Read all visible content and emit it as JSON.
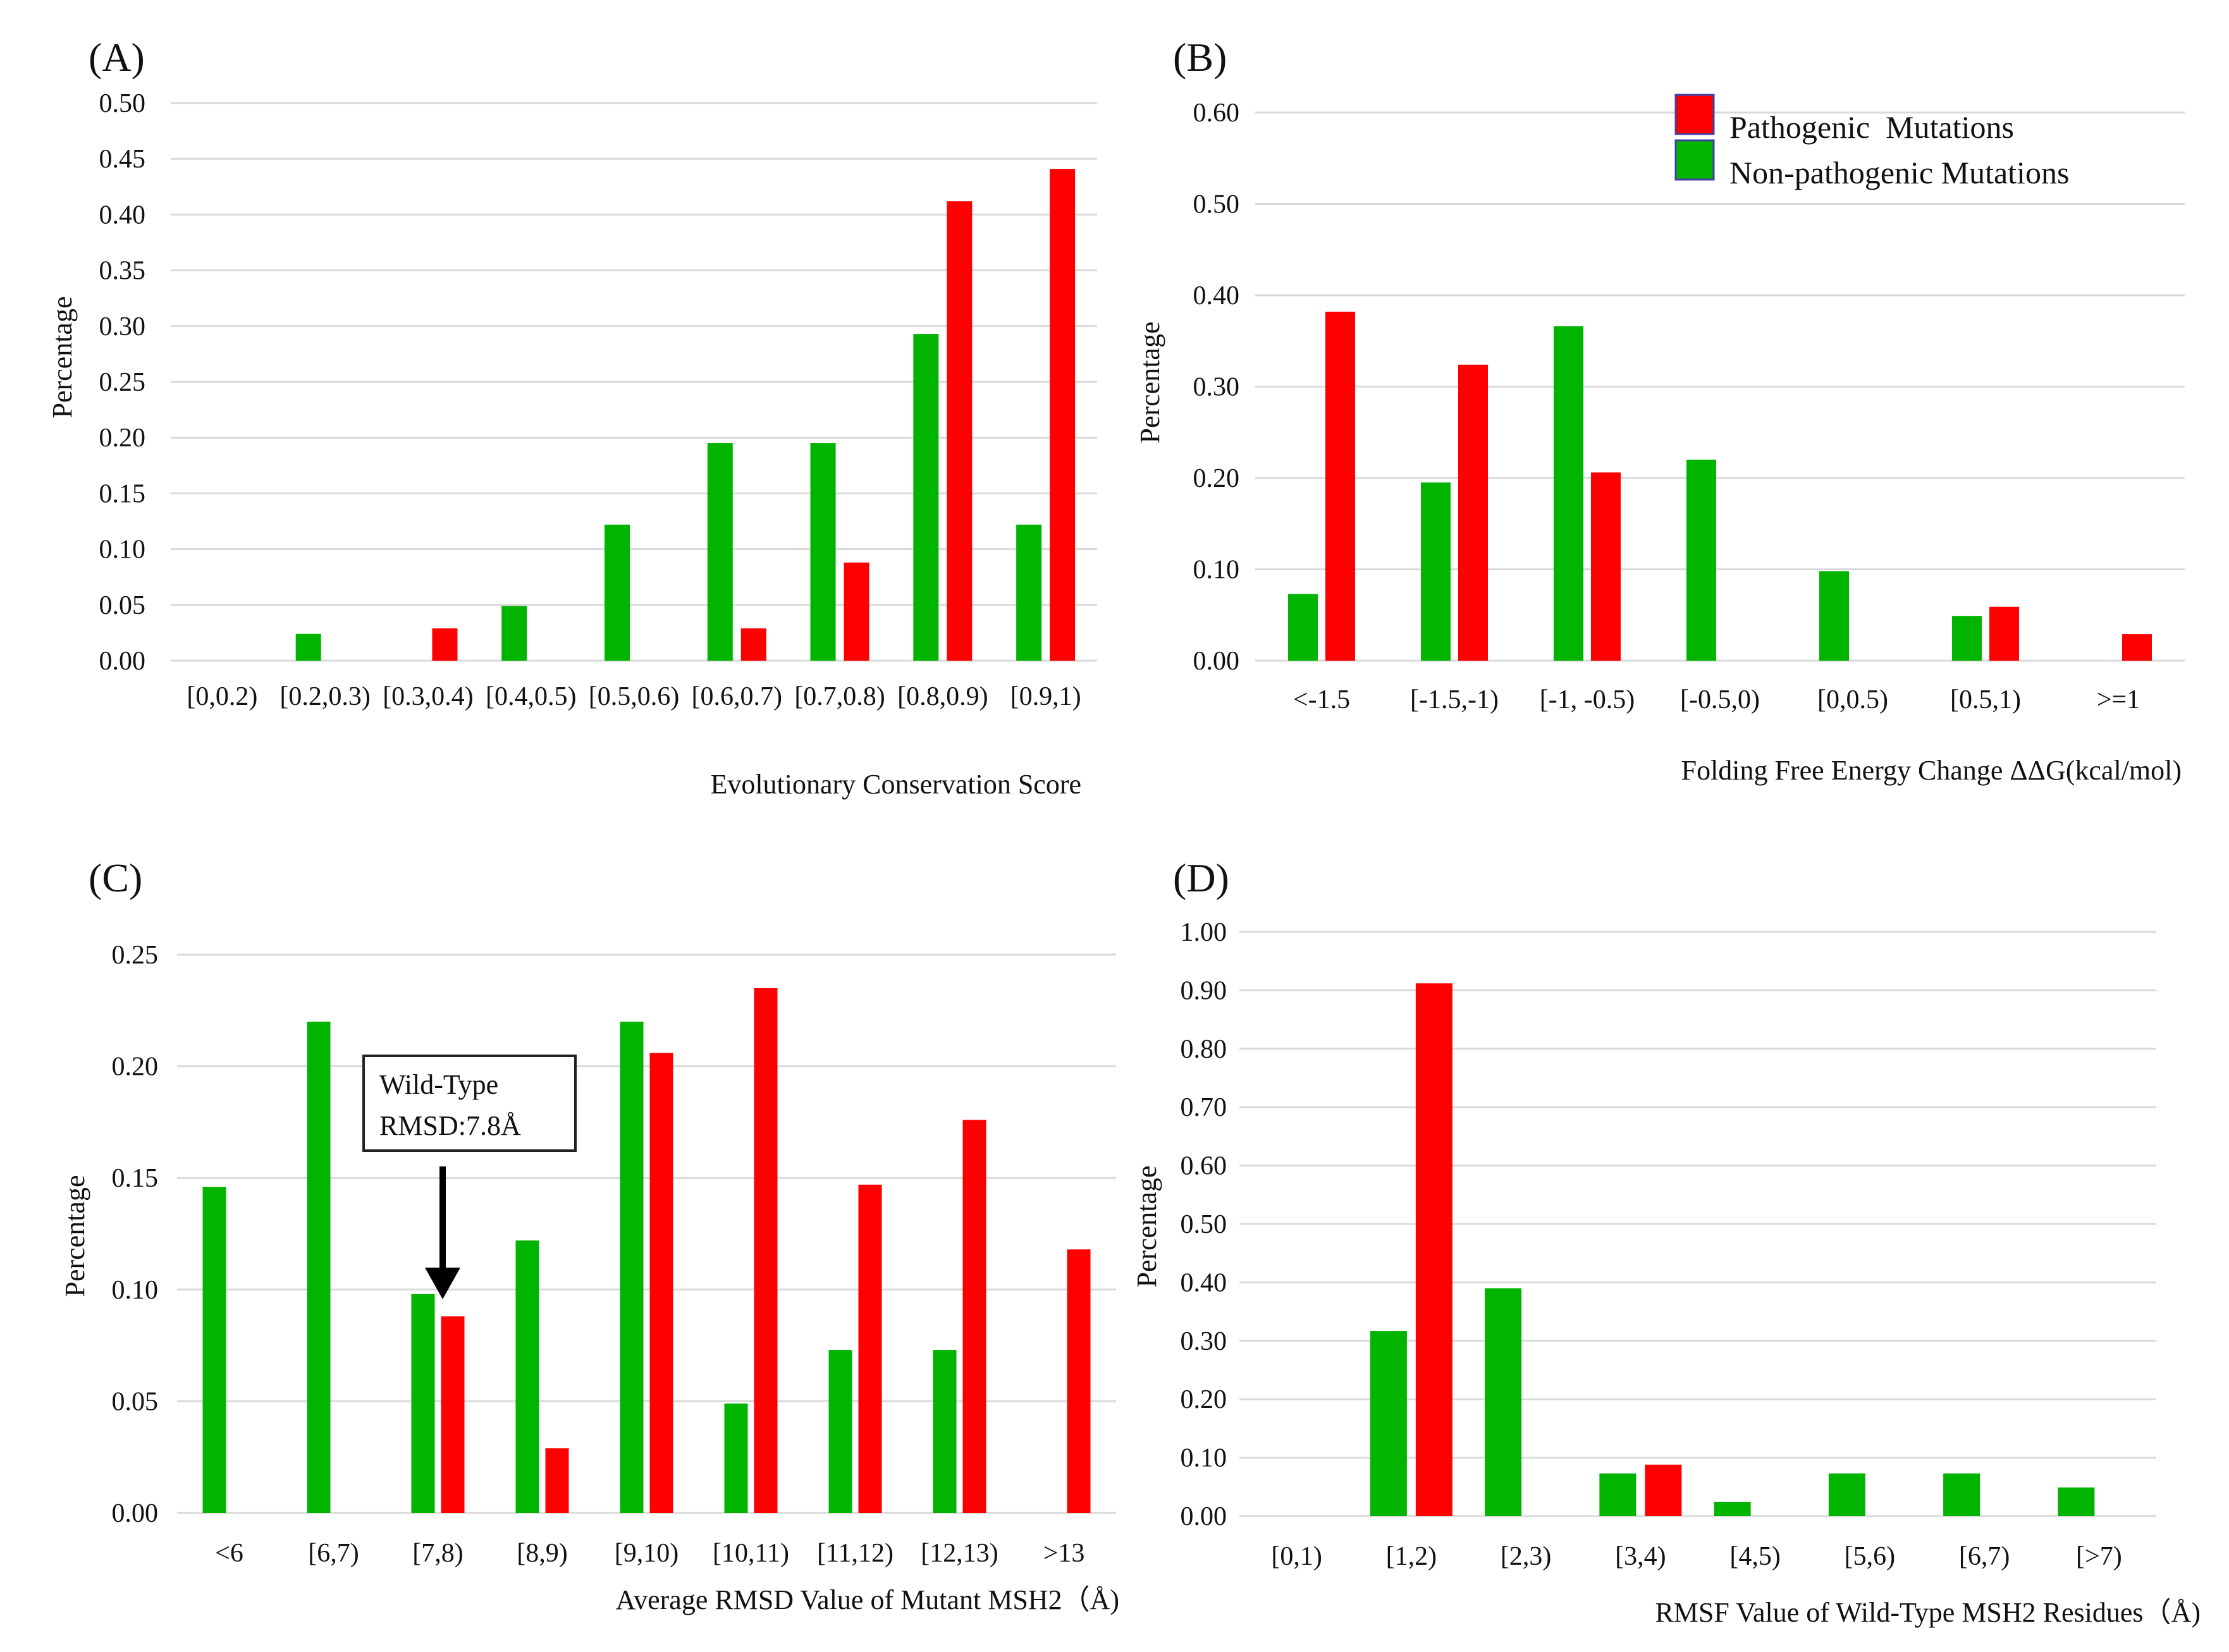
{
  "colors": {
    "pathogenic": "#ff0000",
    "non_pathogenic": "#00b400",
    "grid": "#d9d9d9",
    "text": "#111111"
  },
  "legend": {
    "pathogenic": "Pathogenic  Mutations",
    "non_pathogenic": "Non-pathogenic Mutations"
  },
  "chart_data": [
    {
      "panel": "(A)",
      "type": "bar",
      "ylabel": "Percentage",
      "xlabel": "Evolutionary Conservation Score",
      "ylim": [
        0,
        0.5
      ],
      "yticks": [
        "0.00",
        "0.05",
        "0.10",
        "0.15",
        "0.20",
        "0.25",
        "0.30",
        "0.35",
        "0.40",
        "0.45",
        "0.50"
      ],
      "grid": true,
      "categories": [
        "[0,0.2)",
        "[0.2,0.3)",
        "[0.3,0.4)",
        "[0.4,0.5)",
        "[0.5,0.6)",
        "[0.6,0.7)",
        "[0.7,0.8)",
        "[0.8,0.9)",
        "[0.9,1)"
      ],
      "series": [
        {
          "name": "Non-pathogenic Mutations",
          "values": [
            0,
            0.024,
            0,
            0.049,
            0.122,
            0.195,
            0.195,
            0.293,
            0.122
          ]
        },
        {
          "name": "Pathogenic Mutations",
          "values": [
            0,
            0,
            0.029,
            0,
            0,
            0.029,
            0.088,
            0.412,
            0.441
          ]
        }
      ]
    },
    {
      "panel": "(B)",
      "type": "bar",
      "ylabel": "Percentage",
      "xlabel": "Folding Free Energy Change ΔΔG(kcal/mol)",
      "ylim": [
        0,
        0.6
      ],
      "yticks": [
        "0.00",
        "0.10",
        "0.20",
        "0.30",
        "0.40",
        "0.50",
        "0.60"
      ],
      "grid": true,
      "legend_position": "top-right",
      "categories": [
        "<-1.5",
        "[-1.5,-1)",
        "[-1, -0.5)",
        "[-0.5,0)",
        "[0,0.5)",
        "[0.5,1)",
        ">=1"
      ],
      "series": [
        {
          "name": "Non-pathogenic Mutations",
          "values": [
            0.073,
            0.195,
            0.366,
            0.22,
            0.098,
            0.049,
            0
          ]
        },
        {
          "name": "Pathogenic Mutations",
          "values": [
            0.382,
            0.324,
            0.206,
            0,
            0,
            0.059,
            0.029
          ]
        }
      ]
    },
    {
      "panel": "(C)",
      "type": "bar",
      "ylabel": "Percentage",
      "xlabel": "Average RMSD Value of Mutant MSH2（Å)",
      "ylim": [
        0,
        0.25
      ],
      "yticks": [
        "0.00",
        "0.05",
        "0.10",
        "0.15",
        "0.20",
        "0.25"
      ],
      "grid": true,
      "categories": [
        "<6",
        "[6,7)",
        "[7,8)",
        "[8,9)",
        "[9,10)",
        "[10,11)",
        "[11,12)",
        "[12,13)",
        ">13"
      ],
      "series": [
        {
          "name": "Non-pathogenic Mutations",
          "values": [
            0.146,
            0.22,
            0.098,
            0.122,
            0.22,
            0.049,
            0.073,
            0.073,
            0
          ]
        },
        {
          "name": "Pathogenic Mutations",
          "values": [
            0,
            0,
            0.088,
            0.029,
            0.206,
            0.235,
            0.147,
            0.176,
            0.118
          ]
        }
      ],
      "annotation": {
        "line1": "Wild-Type",
        "line2": "RMSD:7.8Å",
        "category": "[7,8)",
        "arrow_to": 0.1
      }
    },
    {
      "panel": "(D)",
      "type": "bar",
      "ylabel": "Percentage",
      "xlabel": "RMSF Value of Wild-Type MSH2 Residues（Å)",
      "ylim": [
        0,
        1.0
      ],
      "yticks": [
        "0.00",
        "0.10",
        "0.20",
        "0.30",
        "0.40",
        "0.50",
        "0.60",
        "0.70",
        "0.80",
        "0.90",
        "1.00"
      ],
      "grid": true,
      "categories": [
        "[0,1)",
        "[1,2)",
        "[2,3)",
        "[3,4)",
        "[4,5)",
        "[5,6)",
        "[6,7)",
        "[>7)"
      ],
      "series": [
        {
          "name": "Non-pathogenic Mutations",
          "values": [
            0,
            0.317,
            0.39,
            0.073,
            0.024,
            0.073,
            0.073,
            0.049
          ]
        },
        {
          "name": "Pathogenic Mutations",
          "values": [
            0,
            0.912,
            0,
            0.088,
            0,
            0,
            0,
            0
          ]
        }
      ]
    }
  ]
}
